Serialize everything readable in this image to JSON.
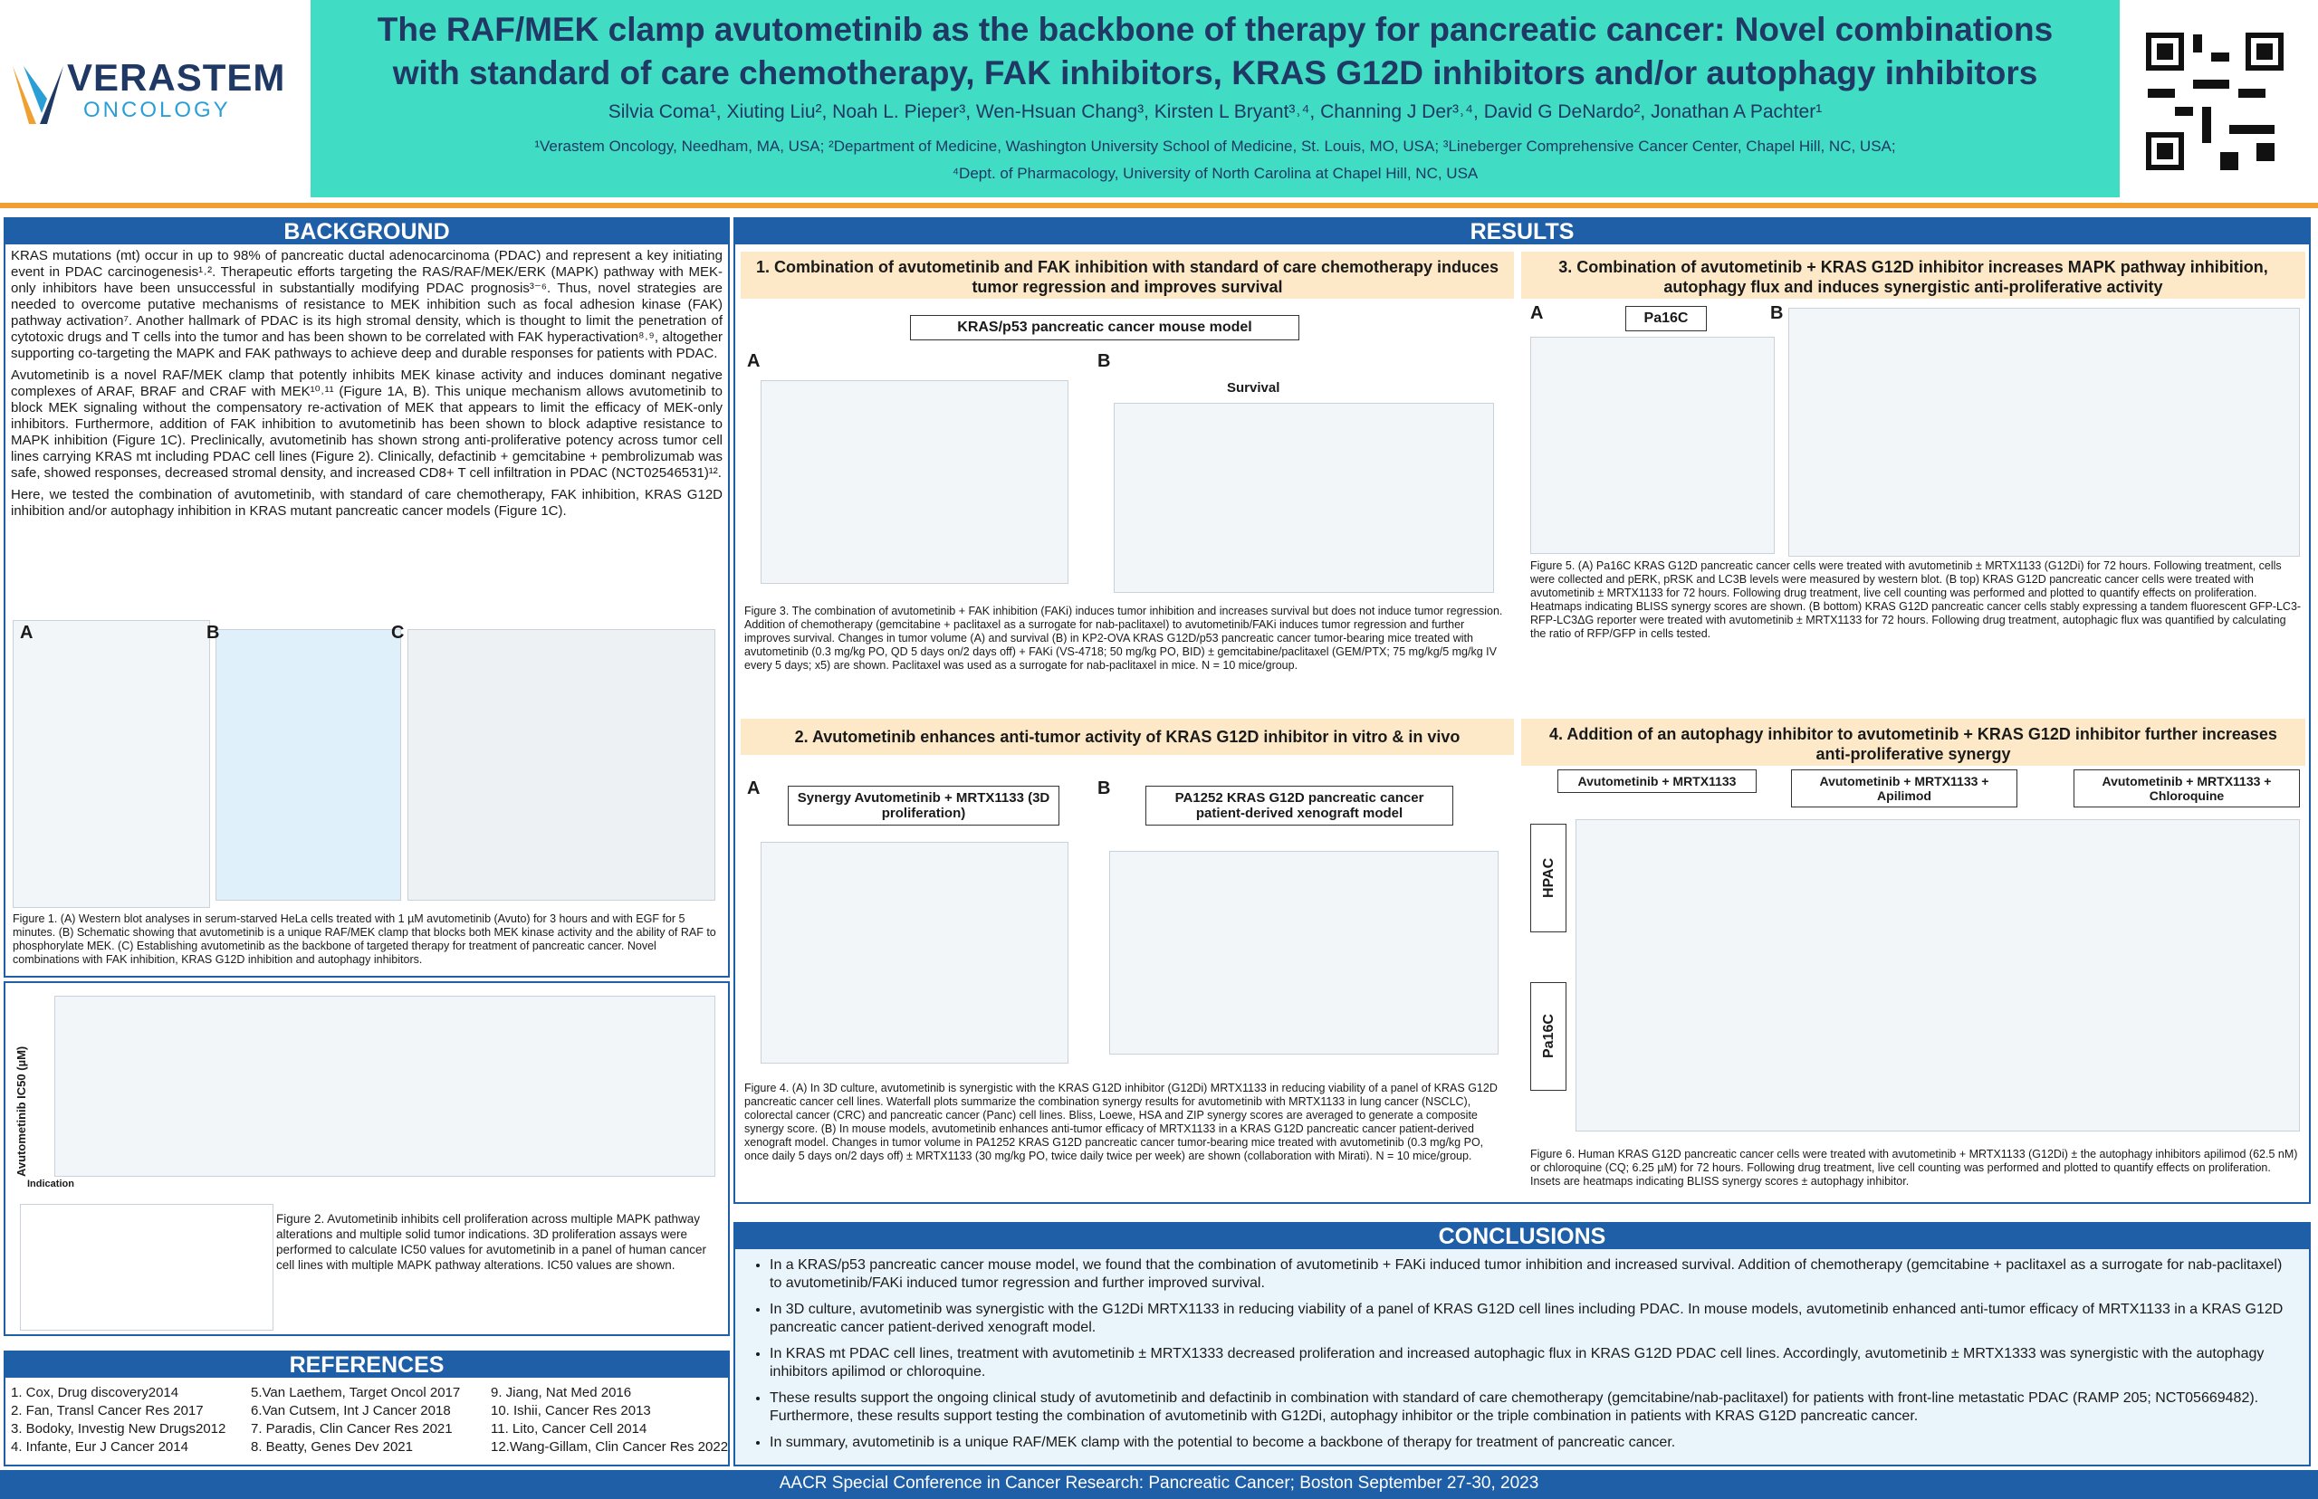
{
  "header": {
    "logo_name": "VERASTEM",
    "logo_sub": "ONCOLOGY",
    "title_line1": "The RAF/MEK clamp avutometinib as the backbone of therapy for pancreatic cancer: Novel combinations",
    "title_line2": "with standard of care chemotherapy, FAK inhibitors, KRAS G12D inhibitors and/or autophagy inhibitors",
    "authors": "Silvia Coma¹, Xiuting Liu², Noah L. Pieper³, Wen-Hsuan Chang³, Kirsten L Bryant³˒⁴, Channing J Der³˒⁴, David G DeNardo², Jonathan A Pachter¹",
    "affiliations_1": "¹Verastem Oncology, Needham, MA, USA; ²Department of Medicine, Washington University School of Medicine, St. Louis, MO, USA; ³Lineberger Comprehensive Cancer Center, Chapel Hill, NC, USA;",
    "affiliations_2": "⁴Dept. of Pharmacology, University of North Carolina at Chapel Hill, NC, USA"
  },
  "background": {
    "heading": "BACKGROUND",
    "paragraphs": [
      "KRAS mutations (mt) occur in up to 98% of pancreatic ductal adenocarcinoma (PDAC) and represent a key initiating event in PDAC carcinogenesis¹˒². Therapeutic efforts targeting the RAS/RAF/MEK/ERK (MAPK) pathway with MEK-only inhibitors have been unsuccessful in substantially modifying PDAC prognosis³⁻⁶. Thus, novel strategies are needed to overcome putative mechanisms of resistance to MEK inhibition such as focal adhesion kinase (FAK) pathway activation⁷. Another hallmark of PDAC is its high stromal density, which is thought to limit the penetration of cytotoxic drugs and T cells into the tumor and has been shown to be correlated with FAK hyperactivation⁸˒⁹, altogether supporting co-targeting the MAPK and FAK pathways to achieve deep and durable responses for patients with PDAC.",
      "Avutometinib is a novel RAF/MEK clamp that potently inhibits MEK kinase activity and induces dominant negative complexes of ARAF, BRAF and CRAF with MEK¹⁰˒¹¹ (Figure 1A, B). This unique mechanism allows avutometinib to block MEK signaling without the compensatory re-activation of MEK that appears to limit the efficacy of MEK-only inhibitors. Furthermore, addition of FAK inhibition to avutometinib has been shown to block adaptive resistance to MAPK inhibition (Figure 1C). Preclinically, avutometinib has shown strong anti-proliferative potency across tumor cell lines carrying KRAS mt including PDAC cell lines (Figure 2). Clinically, defactinib + gemcitabine + pembrolizumab was safe, showed responses, decreased stromal density, and increased CD8+ T cell infiltration in PDAC (NCT02546531)¹².",
      "Here, we tested the combination of avutometinib, with standard of care chemotherapy, FAK inhibition, KRAS G12D inhibition and/or autophagy inhibition in KRAS mutant pancreatic cancer models (Figure 1C)."
    ]
  },
  "figure1": {
    "panel_a": "A",
    "panel_b": "B",
    "panel_c": "C",
    "caption": "Figure 1. (A) Western blot analyses in serum-starved HeLa cells treated with 1 µM avutometinib (Avuto) for 3 hours and with EGF for 5 minutes. (B) Schematic showing that avutometinib is a unique RAF/MEK clamp that blocks both MEK kinase activity and the ability of RAF to phosphorylate MEK. (C) Establishing avutometinib as the backbone of targeted therapy for treatment of pancreatic cancer. Novel combinations with FAK inhibition, KRAS G12D inhibition and autophagy inhibitors."
  },
  "figure2": {
    "y_label": "Avutometinib IC50 (µM)",
    "indication": "Indication",
    "caption": "Figure 2. Avutometinib inhibits cell proliferation across multiple MAPK pathway alterations and multiple solid tumor indications. 3D proliferation assays were performed to calculate IC50 values for avutometinib in a panel of human cancer cell lines with multiple MAPK pathway alterations. IC50 values are shown."
  },
  "references": {
    "heading": "REFERENCES",
    "items": [
      "1. Cox, Drug discovery2014",
      "2. Fan, Transl Cancer Res 2017",
      "3. Bodoky, Investig New Drugs2012",
      "4. Infante, Eur J Cancer 2014",
      "5.Van Laethem, Target Oncol 2017",
      "6.Van Cutsem, Int J Cancer 2018",
      "7. Paradis, Clin Cancer Res 2021",
      "8. Beatty, Genes Dev 2021",
      "9. Jiang, Nat Med 2016",
      "10. Ishii, Cancer Res 2013",
      "11. Lito, Cancer Cell 2014",
      "12.Wang-Gillam, Clin Cancer Res 2022"
    ]
  },
  "results": {
    "heading": "RESULTS"
  },
  "section1": {
    "title": "1.  Combination of avutometinib and FAK inhibition with standard of care chemotherapy induces tumor regression and improves survival",
    "model": "KRAS/p53 pancreatic cancer mouse model",
    "panel_a": "A",
    "panel_b": "B",
    "survival_title": "Survival",
    "caption": "Figure 3. The combination of avutometinib + FAK inhibition (FAKi) induces tumor inhibition and increases survival but does not induce tumor regression. Addition of chemotherapy (gemcitabine + paclitaxel as a surrogate for nab-paclitaxel) to avutometinib/FAKi induces tumor regression and further improves survival. Changes in tumor volume (A) and survival (B) in KP2-OVA KRAS G12D/p53 pancreatic cancer tumor-bearing mice treated with avutometinib (0.3 mg/kg PO, QD 5 days on/2 days off) + FAKi (VS-4718; 50 mg/kg PO, BID) ± gemcitabine/paclitaxel (GEM/PTX; 75 mg/kg/5 mg/kg IV every 5 days; x5) are shown. Paclitaxel was used as a surrogate for nab-paclitaxel in mice. N = 10 mice/group."
  },
  "section2": {
    "title": "2. Avutometinib enhances anti-tumor activity of KRAS G12D inhibitor in vitro & in vivo",
    "panel_a": "A",
    "panel_b": "B",
    "synergy_title": "Synergy Avutometinib + MRTX1133 (3D proliferation)",
    "pdx_title": "PA1252 KRAS G12D pancreatic cancer patient-derived xenograft model",
    "caption": "Figure 4. (A) In 3D culture, avutometinib is synergistic with the KRAS G12D inhibitor (G12Di) MRTX1133 in reducing viability of a panel of KRAS G12D pancreatic cancer cell lines. Waterfall plots summarize the combination synergy results for avutometinib with MRTX1133 in lung cancer (NSCLC), colorectal cancer (CRC) and pancreatic cancer (Panc) cell lines. Bliss, Loewe, HSA and ZIP synergy scores are averaged to generate a composite synergy score. (B) In mouse models, avutometinib enhances anti-tumor efficacy of MRTX1133 in a KRAS G12D pancreatic cancer patient-derived xenograft model. Changes in tumor volume in PA1252 KRAS G12D pancreatic cancer tumor-bearing mice treated with avutometinib (0.3 mg/kg PO, once daily 5 days on/2 days off) ± MRTX1133 (30 mg/kg PO, twice daily twice per week) are shown (collaboration with Mirati). N = 10 mice/group."
  },
  "section3": {
    "title": "3. Combination of avutometinib + KRAS G12D inhibitor increases MAPK pathway inhibition, autophagy flux and induces synergistic anti-proliferative activity",
    "panel_a": "A",
    "panel_b": "B",
    "cell_line": "Pa16C",
    "caption": "Figure 5. (A) Pa16C KRAS G12D pancreatic cancer cells were treated with avutometinib ± MRTX1133 (G12Di) for 72 hours. Following treatment, cells were collected and pERK, pRSK and LC3B levels were measured by western blot. (B top) KRAS G12D pancreatic cancer cells were treated with avutometinib ± MRTX1133 for 72 hours. Following drug treatment, live cell counting was performed and plotted to quantify effects on proliferation. Heatmaps indicating BLISS synergy scores are shown. (B bottom) KRAS G12D pancreatic cancer cells stably expressing a tandem fluorescent GFP-LC3-RFP-LC3ΔG reporter were treated with avutometinib ± MRTX1133 for 72 hours. Following drug treatment, autophagic flux was quantified by calculating the ratio of RFP/GFP in cells tested."
  },
  "section4": {
    "title": "4. Addition of an autophagy inhibitor to avutometinib + KRAS G12D inhibitor further increases anti-proliferative synergy",
    "col1": "Avutometinib + MRTX1133",
    "col2": "Avutometinib + MRTX1133 + Apilimod",
    "col3": "Avutometinib + MRTX1133 + Chloroquine",
    "row1": "HPAC",
    "row2": "Pa16C",
    "caption": "Figure 6. Human KRAS G12D pancreatic cancer cells were treated with avutometinib + MRTX1133 (G12Di) ± the autophagy inhibitors apilimod (62.5 nM) or chloroquine (CQ; 6.25 µM) for 72 hours. Following drug treatment, live cell counting was performed and plotted to quantify effects on proliferation. Insets are heatmaps indicating BLISS synergy scores ± autophagy inhibitor."
  },
  "conclusions": {
    "heading": "CONCLUSIONS",
    "bullets": [
      "In a KRAS/p53 pancreatic cancer mouse model, we found that the combination of avutometinib + FAKi induced tumor inhibition and increased survival. Addition of chemotherapy (gemcitabine + paclitaxel as a surrogate for nab-paclitaxel) to avutometinib/FAKi induced tumor regression and further improved survival.",
      "In 3D culture, avutometinib was synergistic with the G12Di MRTX1133 in reducing viability of a panel of KRAS G12D cell lines including PDAC. In mouse models, avutometinib enhanced anti-tumor efficacy of MRTX1133 in a KRAS G12D pancreatic cancer patient-derived xenograft model.",
      "In KRAS mt PDAC cell lines, treatment with avutometinib ± MRTX1333 decreased proliferation and increased autophagic flux in KRAS G12D PDAC cell lines. Accordingly, avutometinib ± MRTX1333 was synergistic with the autophagy inhibitors apilimod or chloroquine.",
      "These results support the ongoing clinical study of avutometinib and defactinib in combination with standard of care chemotherapy (gemcitabine/nab-paclitaxel) for patients with front-line metastatic PDAC (RAMP 205; NCT05669482). Furthermore, these results support testing the combination of avutometinib with G12Di, autophagy inhibitor or the triple combination in patients with KRAS G12D pancreatic cancer.",
      "In summary, avutometinib is a unique RAF/MEK clamp with the potential to become a backbone of therapy for treatment of pancreatic cancer."
    ]
  },
  "footer": "AACR Special Conference in Cancer Research: Pancreatic Cancer; Boston September 27-30, 2023"
}
